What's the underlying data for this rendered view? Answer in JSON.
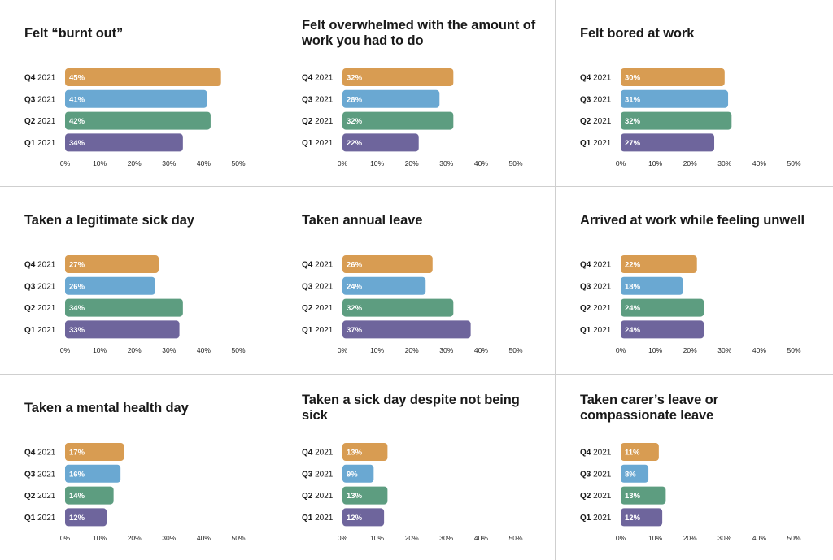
{
  "colors": {
    "Q4 2021": "#d89c52",
    "Q3 2021": "#6aa8d2",
    "Q2 2021": "#5d9d80",
    "Q1 2021": "#6e659c"
  },
  "chart_data": [
    {
      "type": "bar",
      "orientation": "horizontal",
      "title": "Felt “burnt out”",
      "categories": [
        "Q4 2021",
        "Q3 2021",
        "Q2 2021",
        "Q1 2021"
      ],
      "values": [
        45,
        41,
        42,
        34
      ],
      "value_labels": [
        "45%",
        "41%",
        "42%",
        "34%"
      ],
      "xlim": [
        0,
        50
      ],
      "xticks": [
        "0%",
        "10%",
        "20%",
        "30%",
        "40%",
        "50%"
      ]
    },
    {
      "type": "bar",
      "orientation": "horizontal",
      "title": "Felt overwhelmed with the amount of work you had to do",
      "categories": [
        "Q4 2021",
        "Q3 2021",
        "Q2 2021",
        "Q1 2021"
      ],
      "values": [
        32,
        28,
        32,
        22
      ],
      "value_labels": [
        "32%",
        "28%",
        "32%",
        "22%"
      ],
      "xlim": [
        0,
        50
      ],
      "xticks": [
        "0%",
        "10%",
        "20%",
        "30%",
        "40%",
        "50%"
      ]
    },
    {
      "type": "bar",
      "orientation": "horizontal",
      "title": "Felt bored at work",
      "categories": [
        "Q4 2021",
        "Q3 2021",
        "Q2 2021",
        "Q1 2021"
      ],
      "values": [
        30,
        31,
        32,
        27
      ],
      "value_labels": [
        "30%",
        "31%",
        "32%",
        "27%"
      ],
      "xlim": [
        0,
        50
      ],
      "xticks": [
        "0%",
        "10%",
        "20%",
        "30%",
        "40%",
        "50%"
      ]
    },
    {
      "type": "bar",
      "orientation": "horizontal",
      "title": "Taken a legitimate sick day",
      "categories": [
        "Q4 2021",
        "Q3 2021",
        "Q2 2021",
        "Q1 2021"
      ],
      "values": [
        27,
        26,
        34,
        33
      ],
      "value_labels": [
        "27%",
        "26%",
        "34%",
        "33%"
      ],
      "xlim": [
        0,
        50
      ],
      "xticks": [
        "0%",
        "10%",
        "20%",
        "30%",
        "40%",
        "50%"
      ]
    },
    {
      "type": "bar",
      "orientation": "horizontal",
      "title": "Taken annual leave",
      "categories": [
        "Q4 2021",
        "Q3 2021",
        "Q2 2021",
        "Q1 2021"
      ],
      "values": [
        26,
        24,
        32,
        37
      ],
      "value_labels": [
        "26%",
        "24%",
        "32%",
        "37%"
      ],
      "xlim": [
        0,
        50
      ],
      "xticks": [
        "0%",
        "10%",
        "20%",
        "30%",
        "40%",
        "50%"
      ]
    },
    {
      "type": "bar",
      "orientation": "horizontal",
      "title": "Arrived at work while feeling unwell",
      "categories": [
        "Q4 2021",
        "Q3 2021",
        "Q2 2021",
        "Q1 2021"
      ],
      "values": [
        22,
        18,
        24,
        24
      ],
      "value_labels": [
        "22%",
        "18%",
        "24%",
        "24%"
      ],
      "xlim": [
        0,
        50
      ],
      "xticks": [
        "0%",
        "10%",
        "20%",
        "30%",
        "40%",
        "50%"
      ]
    },
    {
      "type": "bar",
      "orientation": "horizontal",
      "title": "Taken a mental health day",
      "categories": [
        "Q4 2021",
        "Q3 2021",
        "Q2 2021",
        "Q1 2021"
      ],
      "values": [
        17,
        16,
        14,
        12
      ],
      "value_labels": [
        "17%",
        "16%",
        "14%",
        "12%"
      ],
      "xlim": [
        0,
        50
      ],
      "xticks": [
        "0%",
        "10%",
        "20%",
        "30%",
        "40%",
        "50%"
      ]
    },
    {
      "type": "bar",
      "orientation": "horizontal",
      "title": "Taken a sick day despite not being sick",
      "categories": [
        "Q4 2021",
        "Q3 2021",
        "Q2 2021",
        "Q1 2021"
      ],
      "values": [
        13,
        9,
        13,
        12
      ],
      "value_labels": [
        "13%",
        "9%",
        "13%",
        "12%"
      ],
      "xlim": [
        0,
        50
      ],
      "xticks": [
        "0%",
        "10%",
        "20%",
        "30%",
        "40%",
        "50%"
      ]
    },
    {
      "type": "bar",
      "orientation": "horizontal",
      "title": "Taken carer’s leave or compassionate leave",
      "categories": [
        "Q4 2021",
        "Q3 2021",
        "Q2 2021",
        "Q1 2021"
      ],
      "values": [
        11,
        8,
        13,
        12
      ],
      "value_labels": [
        "11%",
        "8%",
        "13%",
        "12%"
      ],
      "xlim": [
        0,
        50
      ],
      "xticks": [
        "0%",
        "10%",
        "20%",
        "30%",
        "40%",
        "50%"
      ]
    }
  ]
}
